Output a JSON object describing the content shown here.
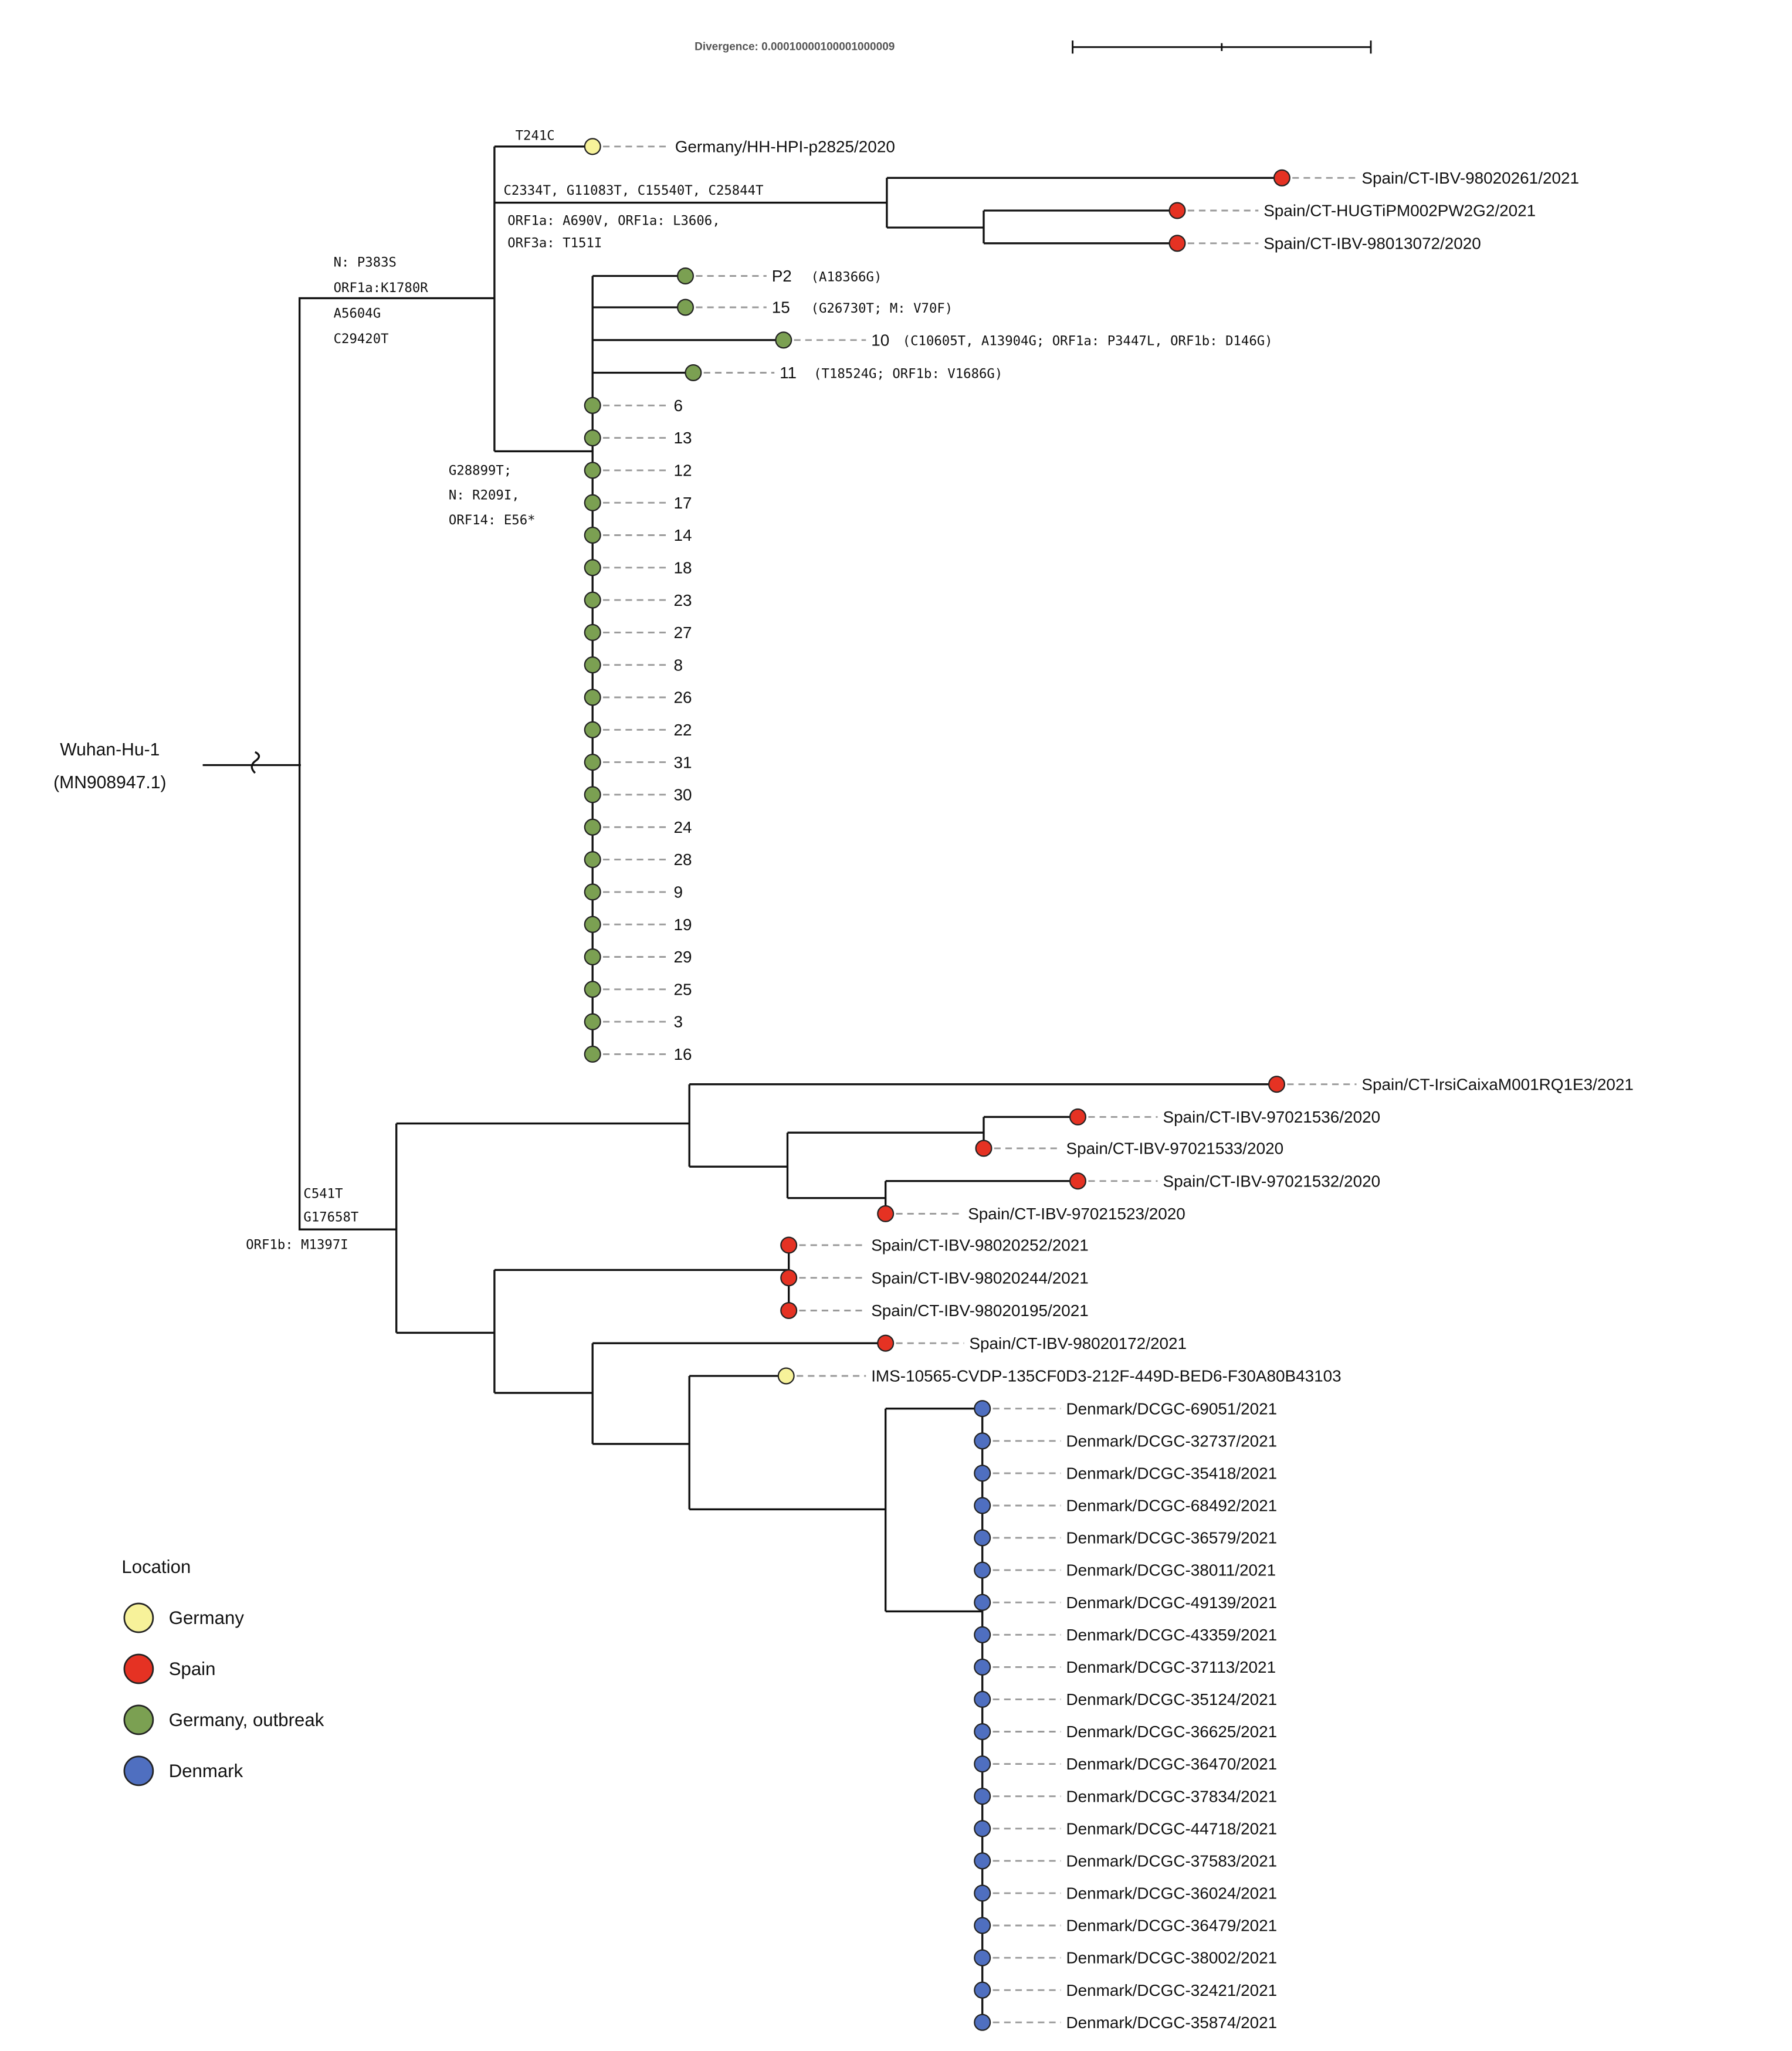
{
  "scale": {
    "label": "Divergence: 0.0001000010000100000 9"
  },
  "root": {
    "name": "Wuhan-Hu-1",
    "accession": "(MN908947.1)"
  },
  "legend": {
    "title": "Location",
    "items": [
      {
        "key": "germany",
        "label": "Germany",
        "color": "#f7f29a"
      },
      {
        "key": "spain",
        "label": "Spain",
        "color": "#e53223"
      },
      {
        "key": "outbreak",
        "label": "Germany, outbreak",
        "color": "#7ba052"
      },
      {
        "key": "denmark",
        "label": "Denmark",
        "color": "#4f6fc0"
      }
    ]
  },
  "mutations": {
    "t241c": "T241C",
    "clade_upper": [
      "N: P383S",
      "ORF1a:K1780R",
      "A5604G",
      "C29420T"
    ],
    "spain_upper": [
      "C2334T, G11083T, C15540T, C25844T",
      "ORF1a: A690V, ORF1a: L3606,",
      "ORF3a: T151I"
    ],
    "outbreak": [
      "G28899T;",
      "N: R209I,",
      "ORF14: E56*"
    ],
    "clade_lower": [
      "C541T",
      "G17658T",
      "ORF1b: M1397I"
    ]
  },
  "tips": {
    "germany_hh": "Germany/HH-HPI-p2825/2020",
    "spain_98020261": "Spain/CT-IBV-98020261/2021",
    "spain_hugti": "Spain/CT-HUGTiPM002PW2G2/2021",
    "spain_98013072": "Spain/CT-IBV-98013072/2020",
    "p2": {
      "name": "P2",
      "note": "(A18366G)"
    },
    "s15": {
      "name": "15",
      "note": "(G26730T; M: V70F)"
    },
    "s10": {
      "name": "10",
      "note": "(C10605T, A13904G; ORF1a: P3447L, ORF1b: D146G)"
    },
    "s11": {
      "name": "11",
      "note": "(T18524G; ORF1b: V1686G)"
    },
    "outbreak_list": [
      "6",
      "13",
      "12",
      "17",
      "14",
      "18",
      "23",
      "27",
      "8",
      "26",
      "22",
      "31",
      "30",
      "24",
      "28",
      "9",
      "19",
      "29",
      "25",
      "3",
      "16"
    ],
    "spain_irsi": "Spain/CT-IrsiCaixaM001RQ1E3/2021",
    "spain_97021536": "Spain/CT-IBV-97021536/2020",
    "spain_97021533": "Spain/CT-IBV-97021533/2020",
    "spain_97021532": "Spain/CT-IBV-97021532/2020",
    "spain_97021523": "Spain/CT-IBV-97021523/2020",
    "spain_98020252": "Spain/CT-IBV-98020252/2021",
    "spain_98020244": "Spain/CT-IBV-98020244/2021",
    "spain_98020195": "Spain/CT-IBV-98020195/2021",
    "spain_98020172": "Spain/CT-IBV-98020172/2021",
    "ims": "IMS-10565-CVDP-135CF0D3-212F-449D-BED6-F30A80B43103",
    "denmark_list": [
      "Denmark/DCGC-69051/2021",
      "Denmark/DCGC-32737/2021",
      "Denmark/DCGC-35418/2021",
      "Denmark/DCGC-68492/2021",
      "Denmark/DCGC-36579/2021",
      "Denmark/DCGC-38011/2021",
      "Denmark/DCGC-49139/2021",
      "Denmark/DCGC-43359/2021",
      "Denmark/DCGC-37113/2021",
      "Denmark/DCGC-35124/2021",
      "Denmark/DCGC-36625/2021",
      "Denmark/DCGC-36470/2021",
      "Denmark/DCGC-37834/2021",
      "Denmark/DCGC-44718/2021",
      "Denmark/DCGC-37583/2021",
      "Denmark/DCGC-36024/2021",
      "Denmark/DCGC-36479/2021",
      "Denmark/DCGC-38002/2021",
      "Denmark/DCGC-32421/2021",
      "Denmark/DCGC-35874/2021"
    ]
  }
}
